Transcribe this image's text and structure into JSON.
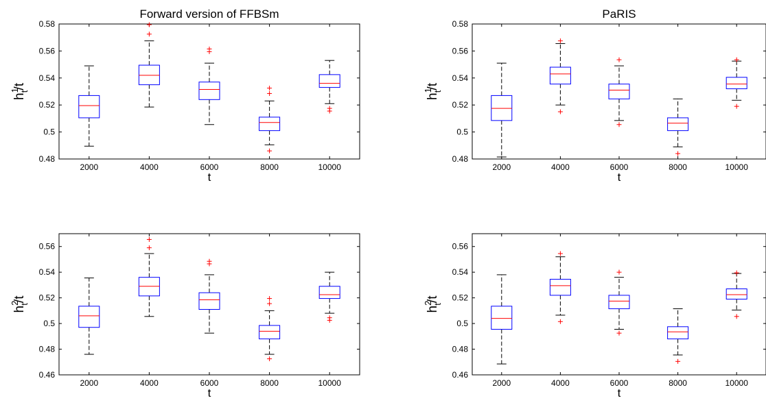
{
  "chart_data": [
    {
      "type": "box",
      "title": "Forward version of FFBSm",
      "xlabel": "t",
      "ylabel": {
        "base": "h",
        "sub": "t",
        "sup": "1",
        "tail": "/t"
      },
      "categories": [
        "2000",
        "4000",
        "6000",
        "8000",
        "10000"
      ],
      "ylim": [
        0.48,
        0.58
      ],
      "yticks": [
        0.48,
        0.5,
        0.52,
        0.54,
        0.56,
        0.58
      ],
      "ytick_labels": [
        "0.48",
        "0.5",
        "0.52",
        "0.54",
        "0.56",
        "0.58"
      ],
      "boxes": [
        {
          "q1": 0.5105,
          "median": 0.5195,
          "q3": 0.527,
          "whisker_low": 0.4895,
          "whisker_high": 0.549,
          "outliers": []
        },
        {
          "q1": 0.535,
          "median": 0.542,
          "q3": 0.5495,
          "whisker_low": 0.5185,
          "whisker_high": 0.5675,
          "outliers": [
            0.5725,
            0.5795
          ]
        },
        {
          "q1": 0.524,
          "median": 0.5315,
          "q3": 0.537,
          "whisker_low": 0.5055,
          "whisker_high": 0.551,
          "outliers": [
            0.5595,
            0.5615
          ]
        },
        {
          "q1": 0.501,
          "median": 0.507,
          "q3": 0.511,
          "whisker_low": 0.4905,
          "whisker_high": 0.523,
          "outliers": [
            0.486,
            0.5285,
            0.5325
          ]
        },
        {
          "q1": 0.533,
          "median": 0.536,
          "q3": 0.5425,
          "whisker_low": 0.521,
          "whisker_high": 0.553,
          "outliers": [
            0.5155,
            0.5175
          ]
        }
      ]
    },
    {
      "type": "box",
      "title": "PaRIS",
      "xlabel": "t",
      "ylabel": {
        "base": "h",
        "sub": "t",
        "sup": "1",
        "tail": "/t"
      },
      "categories": [
        "2000",
        "4000",
        "6000",
        "8000",
        "10000"
      ],
      "ylim": [
        0.48,
        0.58
      ],
      "yticks": [
        0.48,
        0.5,
        0.52,
        0.54,
        0.56,
        0.58
      ],
      "ytick_labels": [
        "0.48",
        "0.5",
        "0.52",
        "0.54",
        "0.56",
        "0.58"
      ],
      "boxes": [
        {
          "q1": 0.5085,
          "median": 0.5175,
          "q3": 0.527,
          "whisker_low": 0.4815,
          "whisker_high": 0.551,
          "outliers": []
        },
        {
          "q1": 0.5355,
          "median": 0.543,
          "q3": 0.548,
          "whisker_low": 0.52,
          "whisker_high": 0.5655,
          "outliers": [
            0.515,
            0.5675
          ]
        },
        {
          "q1": 0.5245,
          "median": 0.531,
          "q3": 0.5355,
          "whisker_low": 0.5085,
          "whisker_high": 0.549,
          "outliers": [
            0.5055,
            0.5535
          ]
        },
        {
          "q1": 0.501,
          "median": 0.5065,
          "q3": 0.5105,
          "whisker_low": 0.489,
          "whisker_high": 0.5245,
          "outliers": [
            0.484
          ]
        },
        {
          "q1": 0.532,
          "median": 0.5355,
          "q3": 0.5405,
          "whisker_low": 0.5235,
          "whisker_high": 0.5525,
          "outliers": [
            0.519,
            0.5535
          ]
        }
      ]
    },
    {
      "type": "box",
      "title": "",
      "xlabel": "t",
      "ylabel": {
        "base": "h",
        "sub": "t",
        "sup": "2",
        "tail": "/t"
      },
      "categories": [
        "2000",
        "4000",
        "6000",
        "8000",
        "10000"
      ],
      "ylim": [
        0.46,
        0.57
      ],
      "yticks": [
        0.46,
        0.48,
        0.5,
        0.52,
        0.54,
        0.56
      ],
      "ytick_labels": [
        "0.46",
        "0.48",
        "0.5",
        "0.52",
        "0.54",
        "0.56"
      ],
      "boxes": [
        {
          "q1": 0.497,
          "median": 0.506,
          "q3": 0.5135,
          "whisker_low": 0.476,
          "whisker_high": 0.5355,
          "outliers": []
        },
        {
          "q1": 0.5215,
          "median": 0.529,
          "q3": 0.536,
          "whisker_low": 0.5055,
          "whisker_high": 0.5545,
          "outliers": [
            0.559,
            0.5655
          ]
        },
        {
          "q1": 0.511,
          "median": 0.5185,
          "q3": 0.524,
          "whisker_low": 0.4925,
          "whisker_high": 0.538,
          "outliers": [
            0.5465,
            0.5485
          ]
        },
        {
          "q1": 0.488,
          "median": 0.494,
          "q3": 0.4985,
          "whisker_low": 0.476,
          "whisker_high": 0.51,
          "outliers": [
            0.4725,
            0.5155,
            0.5195
          ]
        },
        {
          "q1": 0.5195,
          "median": 0.5225,
          "q3": 0.529,
          "whisker_low": 0.508,
          "whisker_high": 0.54,
          "outliers": [
            0.5025,
            0.5045
          ]
        }
      ]
    },
    {
      "type": "box",
      "title": "",
      "xlabel": "t",
      "ylabel": {
        "base": "h",
        "sub": "t",
        "sup": "2",
        "tail": "/t"
      },
      "categories": [
        "2000",
        "4000",
        "6000",
        "8000",
        "10000"
      ],
      "ylim": [
        0.46,
        0.57
      ],
      "yticks": [
        0.46,
        0.48,
        0.5,
        0.52,
        0.54,
        0.56
      ],
      "ytick_labels": [
        "0.46",
        "0.48",
        "0.5",
        "0.52",
        "0.54",
        "0.56"
      ],
      "boxes": [
        {
          "q1": 0.4955,
          "median": 0.504,
          "q3": 0.5135,
          "whisker_low": 0.4685,
          "whisker_high": 0.538,
          "outliers": []
        },
        {
          "q1": 0.522,
          "median": 0.5295,
          "q3": 0.5345,
          "whisker_low": 0.5065,
          "whisker_high": 0.552,
          "outliers": [
            0.5015,
            0.5545
          ]
        },
        {
          "q1": 0.5115,
          "median": 0.5175,
          "q3": 0.522,
          "whisker_low": 0.4955,
          "whisker_high": 0.536,
          "outliers": [
            0.4925,
            0.54
          ]
        },
        {
          "q1": 0.488,
          "median": 0.4935,
          "q3": 0.4975,
          "whisker_low": 0.4755,
          "whisker_high": 0.5115,
          "outliers": [
            0.4705
          ]
        },
        {
          "q1": 0.519,
          "median": 0.5225,
          "q3": 0.527,
          "whisker_low": 0.5105,
          "whisker_high": 0.539,
          "outliers": [
            0.5055,
            0.5395
          ]
        }
      ]
    }
  ],
  "colors": {
    "box": "#0000ff",
    "median": "#ff0000",
    "whisker": "#000000",
    "outlier": "#ff0000",
    "axes": "#000000"
  }
}
